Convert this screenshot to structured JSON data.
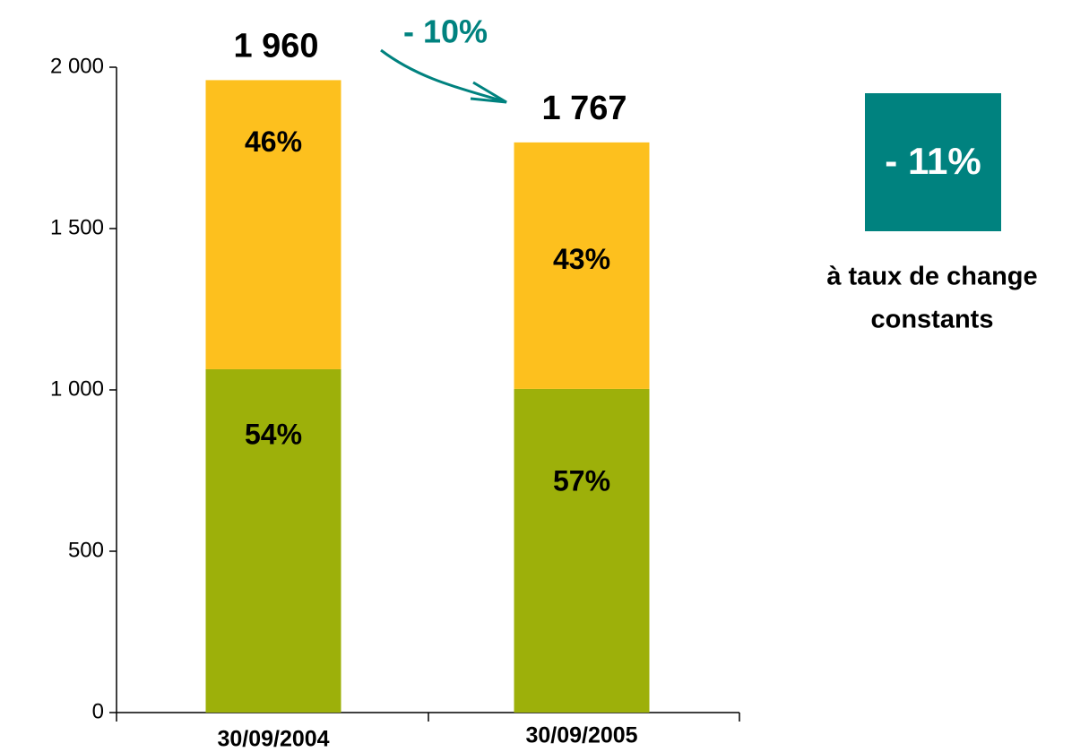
{
  "chart_data": {
    "type": "stacked_bar",
    "categories": [
      "30/09/2004",
      "30/09/2005"
    ],
    "series": [
      {
        "color": "#9db00a",
        "values": [
          1064,
          1003
        ],
        "labels": [
          "54%",
          "57%"
        ]
      },
      {
        "color": "#fdc01e",
        "values": [
          896,
          764
        ],
        "labels": [
          "46%",
          "43%"
        ]
      }
    ],
    "totals": [
      1960,
      1767
    ],
    "total_labels": [
      "1 960",
      "1 767"
    ],
    "ylim": [
      0,
      2000
    ],
    "yticks": [
      0,
      500,
      {
        "value": 1000,
        "label": "1 000"
      },
      {
        "value": 1500,
        "label": "1 500"
      },
      {
        "value": 2000,
        "label": "2 000"
      }
    ],
    "change_annotation": "- 10%",
    "box": {
      "text": "- 11%",
      "color": "#00827f"
    },
    "note_lines": [
      "à taux de change",
      "constants"
    ]
  }
}
